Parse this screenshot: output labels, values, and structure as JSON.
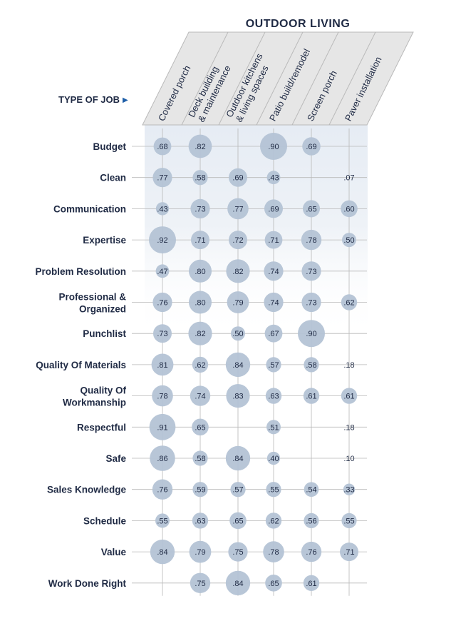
{
  "chart_data": {
    "type": "bubble-matrix",
    "title": "OUTDOOR LIVING",
    "row_axis_label": "TYPE OF JOB",
    "row_axis_marker": "▶",
    "colors": {
      "bubble": "#b4c3d5",
      "text": "#1f2a44",
      "header_fill": "#e6e6e6",
      "header_stroke": "#b9b9b9",
      "grid": "#b8b8b8",
      "band_top": "#e6ecf4"
    },
    "columns": [
      [
        "Covered porch"
      ],
      [
        "Deck building",
        "& maintenance"
      ],
      [
        "Outdoor kitchens",
        "& living spaces"
      ],
      [
        "Patio build/remodel"
      ],
      [
        "Screen porch"
      ],
      [
        "Paver installation"
      ]
    ],
    "rows": [
      [
        "Budget"
      ],
      [
        "Clean"
      ],
      [
        "Communication"
      ],
      [
        "Expertise"
      ],
      [
        "Problem Resolution"
      ],
      [
        "Professional &",
        "Organized"
      ],
      [
        "Punchlist"
      ],
      [
        "Quality Of Materials"
      ],
      [
        "Quality Of",
        "Workmanship"
      ],
      [
        "Respectful"
      ],
      [
        "Safe"
      ],
      [
        "Sales Knowledge"
      ],
      [
        "Schedule"
      ],
      [
        "Value"
      ],
      [
        "Work Done Right"
      ]
    ],
    "values": [
      [
        ".68",
        ".82",
        null,
        ".90",
        ".69",
        null
      ],
      [
        ".77",
        ".58",
        ".69",
        ".43",
        null,
        ".07"
      ],
      [
        ".43",
        ".73",
        ".77",
        ".69",
        ".65",
        ".60"
      ],
      [
        ".92",
        ".71",
        ".72",
        ".71",
        ".78",
        ".50"
      ],
      [
        ".47",
        ".80",
        ".82",
        ".74",
        ".73",
        null
      ],
      [
        ".76",
        ".80",
        ".79",
        ".74",
        ".73",
        ".62"
      ],
      [
        ".73",
        ".82",
        ".50",
        ".67",
        ".90",
        null
      ],
      [
        ".81",
        ".62",
        ".84",
        ".57",
        ".58",
        ".18"
      ],
      [
        ".78",
        ".74",
        ".83",
        ".63",
        ".61",
        ".61"
      ],
      [
        ".91",
        ".65",
        null,
        ".51",
        null,
        ".18"
      ],
      [
        ".86",
        ".58",
        ".84",
        ".40",
        null,
        ".10"
      ],
      [
        ".76",
        ".59",
        ".57",
        ".55",
        ".54",
        ".33"
      ],
      [
        ".55",
        ".63",
        ".65",
        ".62",
        ".56",
        ".55"
      ],
      [
        ".84",
        ".79",
        ".75",
        ".78",
        ".76",
        ".71"
      ],
      [
        null,
        ".75",
        ".84",
        ".65",
        ".61",
        null
      ]
    ],
    "sizes": [
      [
        0.45,
        0.78,
        null,
        1.0,
        0.48,
        null
      ],
      [
        0.55,
        0.3,
        0.5,
        0.2,
        null,
        0.0
      ],
      [
        0.18,
        0.55,
        0.65,
        0.5,
        0.42,
        0.4
      ],
      [
        1.0,
        0.5,
        0.5,
        0.45,
        0.6,
        0.25
      ],
      [
        0.2,
        0.75,
        0.8,
        0.55,
        0.55,
        null
      ],
      [
        0.55,
        0.75,
        0.7,
        0.55,
        0.55,
        0.35
      ],
      [
        0.5,
        0.8,
        0.25,
        0.45,
        1.0,
        null
      ],
      [
        0.7,
        0.35,
        0.85,
        0.3,
        0.3,
        0.02
      ],
      [
        0.65,
        0.6,
        0.8,
        0.35,
        0.35,
        0.35
      ],
      [
        0.95,
        0.4,
        null,
        0.25,
        null,
        0.02
      ],
      [
        0.9,
        0.3,
        0.85,
        0.18,
        null,
        0.0
      ],
      [
        0.6,
        0.3,
        0.3,
        0.3,
        0.28,
        0.1
      ],
      [
        0.25,
        0.35,
        0.4,
        0.35,
        0.3,
        0.3
      ],
      [
        0.85,
        0.7,
        0.55,
        0.65,
        0.6,
        0.5
      ],
      [
        null,
        0.6,
        0.85,
        0.4,
        0.35,
        null
      ]
    ]
  }
}
